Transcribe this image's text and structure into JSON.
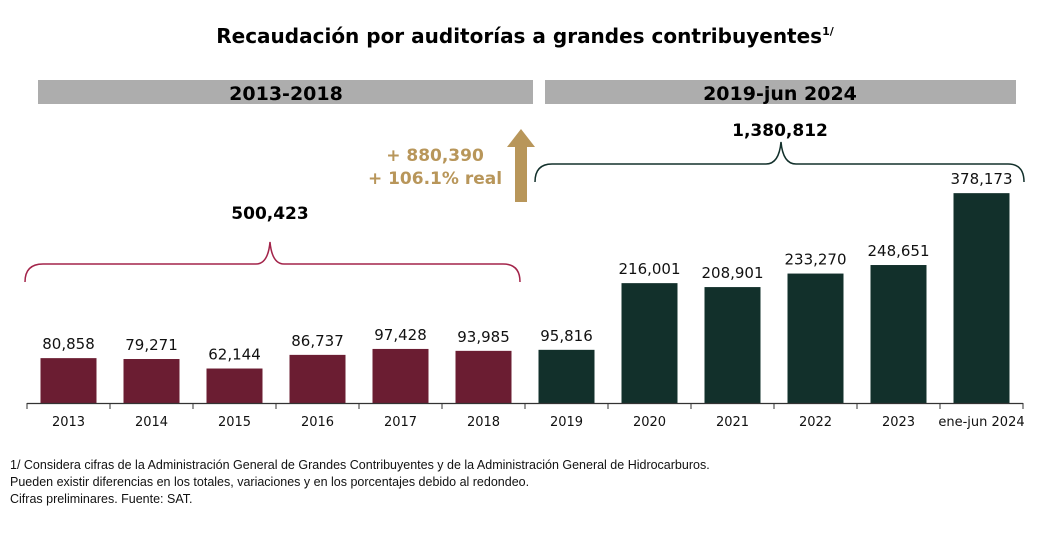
{
  "chart_data": {
    "type": "bar",
    "title": "Recaudación por auditorías a grandes contribuyentes",
    "title_superscript": "1/",
    "categories": [
      "2013",
      "2014",
      "2015",
      "2016",
      "2017",
      "2018",
      "2019",
      "2020",
      "2021",
      "2022",
      "2023",
      "ene-jun 2024"
    ],
    "values": [
      80858,
      79271,
      62144,
      86737,
      97428,
      93985,
      95816,
      216001,
      208901,
      233270,
      248651,
      378173
    ],
    "value_labels": [
      "80,858",
      "79,271",
      "62,144",
      "86,737",
      "97,428",
      "93,985",
      "95,816",
      "216,001",
      "208,901",
      "233,270",
      "248,651",
      "378,173"
    ],
    "ylim": [
      0,
      510000
    ],
    "grid": false,
    "periods": [
      {
        "label": "2013-2018",
        "total": "500,423",
        "color": "#6b1d32",
        "range": [
          0,
          5
        ]
      },
      {
        "label": "2019-jun 2024",
        "total": "1,380,812",
        "color": "#12302b",
        "range": [
          6,
          11
        ]
      }
    ],
    "annotation": {
      "line1": "+ 880,390",
      "line2": "+ 106.1% real",
      "color": "#b8965a"
    },
    "header_band_color": "#adadad"
  },
  "notes": [
    "1/ Considera cifras de la Administración General de Grandes Contribuyentes y de la Administración General de Hidrocarburos.",
    "Pueden existir diferencias en los totales, variaciones y en los porcentajes debido al redondeo.",
    "Cifras preliminares. Fuente: SAT."
  ]
}
